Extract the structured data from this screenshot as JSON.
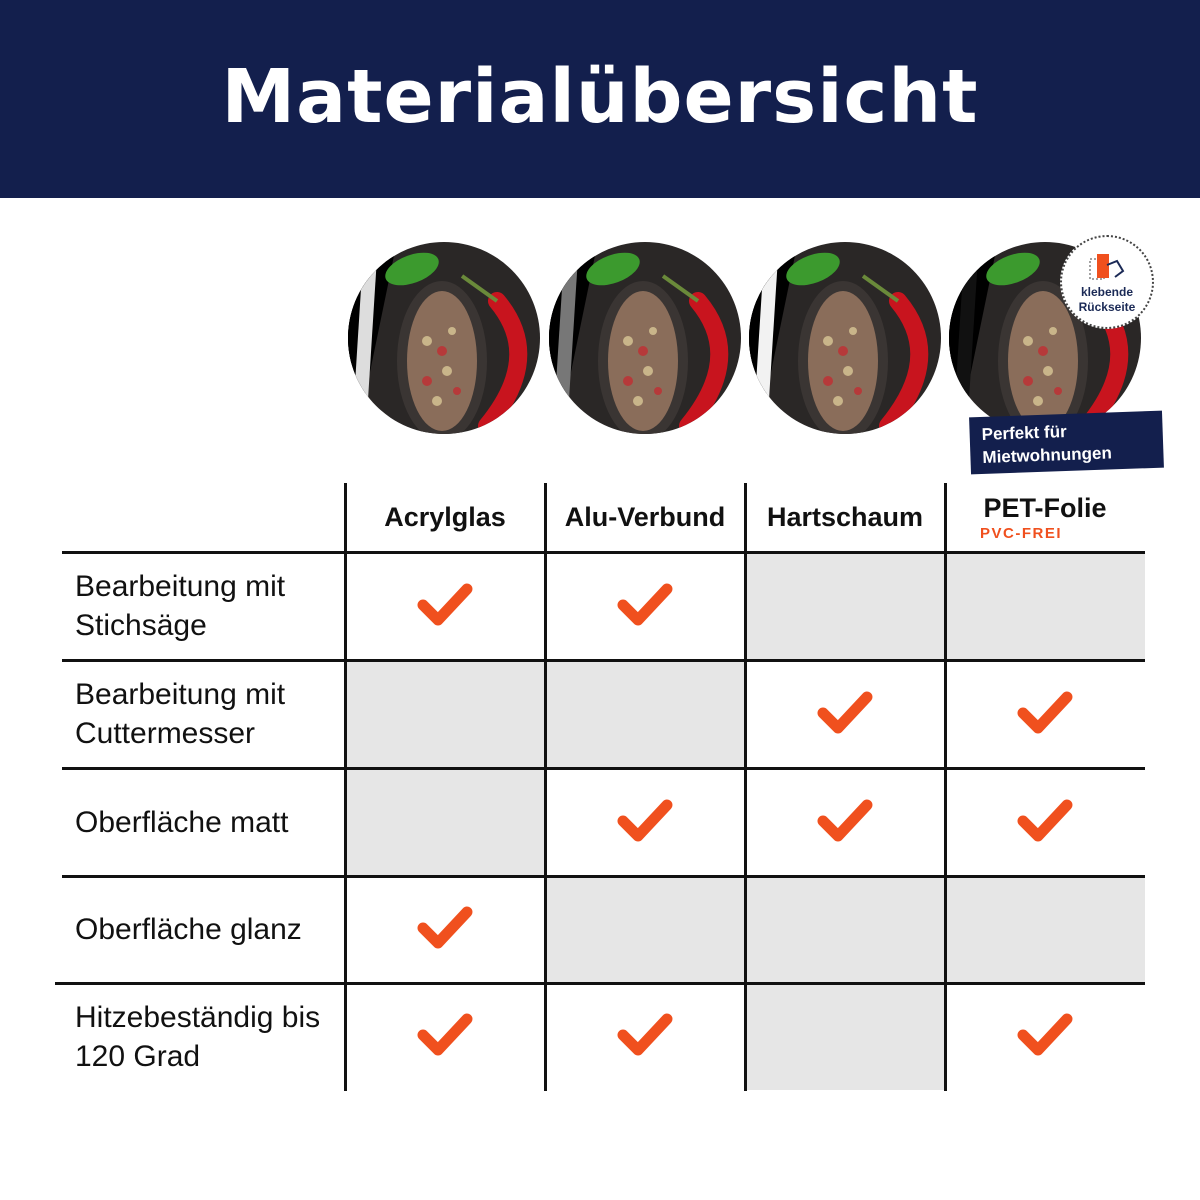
{
  "title": "Materialübersicht",
  "colors": {
    "header_bg": "#131f4d",
    "check": "#f0501e",
    "cell_grey": "#e6e6e6"
  },
  "columns": [
    {
      "label": "Acrylglas",
      "sub": ""
    },
    {
      "label": "Alu-Verbund",
      "sub": ""
    },
    {
      "label": "Hartschaum",
      "sub": ""
    },
    {
      "label": "PET-Folie",
      "sub": "PVC-FREI"
    }
  ],
  "badge": {
    "line1": "klebende",
    "line2": "Rückseite",
    "icon": "adhesive-back-icon"
  },
  "banner": {
    "line1": "Perfekt für",
    "line2": "Mietwohnungen"
  },
  "rows": [
    {
      "label": "Bearbeitung mit Stichsäge",
      "values": [
        true,
        true,
        false,
        false
      ]
    },
    {
      "label": "Bearbeitung mit Cuttermesser",
      "values": [
        false,
        false,
        true,
        true
      ]
    },
    {
      "label": "Oberfläche matt",
      "values": [
        false,
        true,
        true,
        true
      ]
    },
    {
      "label": "Oberfläche glanz",
      "values": [
        true,
        false,
        false,
        false
      ]
    },
    {
      "label": "Hitzebeständig bis 120 Grad",
      "values": [
        true,
        true,
        false,
        true
      ]
    }
  ]
}
